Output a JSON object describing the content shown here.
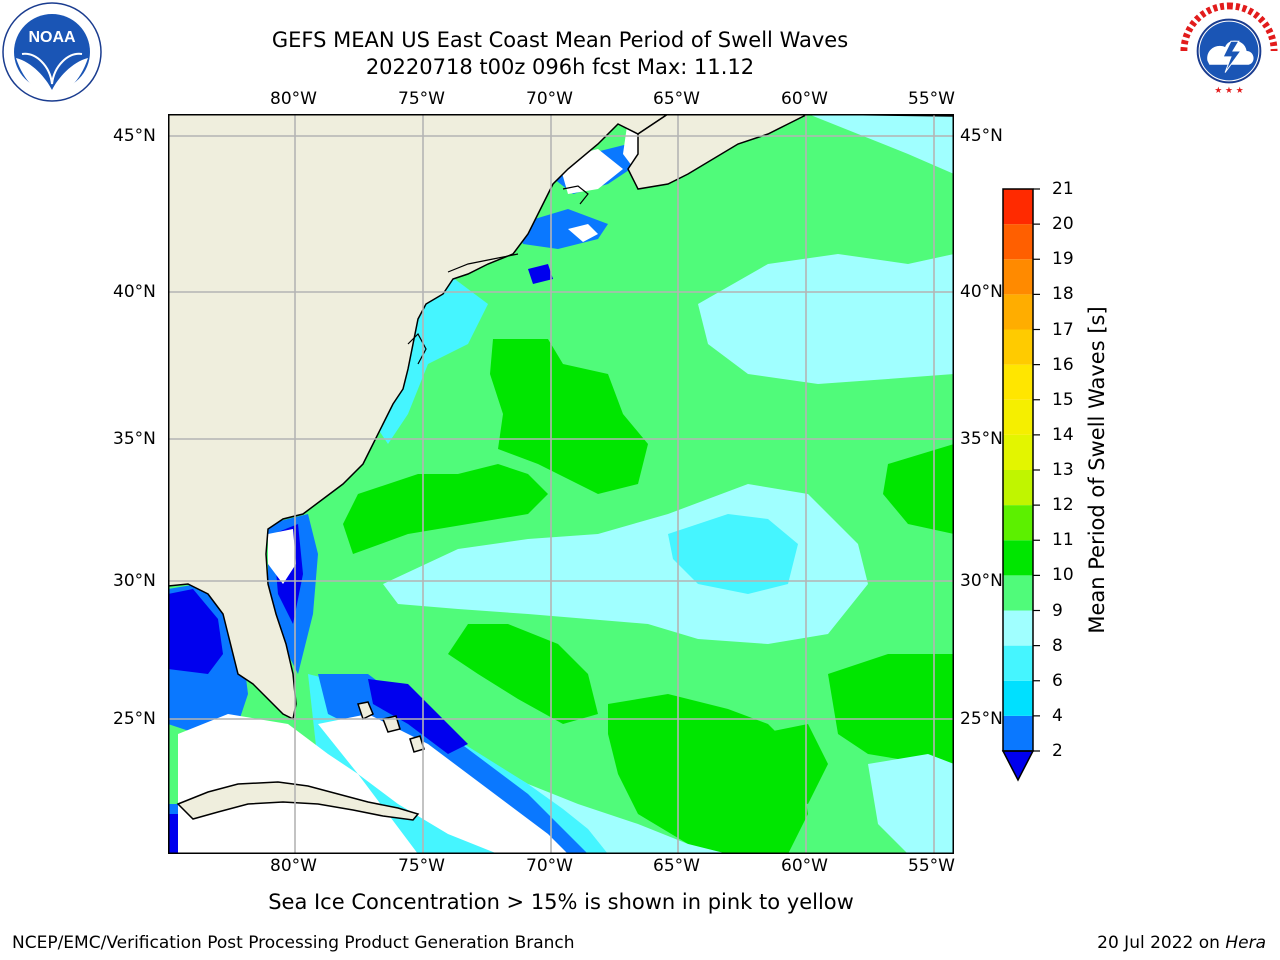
{
  "header": {
    "title_line1": "GEFS MEAN US East Coast Mean Period of Swell Waves",
    "title_line2": "20220718 t00z 096h fcst   Max: 11.12"
  },
  "map": {
    "region": "US East Coast / Western North Atlantic",
    "lon_labels": [
      "80°W",
      "75°W",
      "70°W",
      "65°W",
      "60°W",
      "55°W"
    ],
    "lat_labels": [
      "45°N",
      "40°N",
      "35°N",
      "30°N",
      "25°N"
    ],
    "lon_range": [
      "85°W",
      "54.5°W"
    ],
    "lat_range": [
      "20.5°N",
      "46°N"
    ],
    "grid": true,
    "land_color": "#efeedd",
    "grid_color": "#b4b4b4"
  },
  "colorbar": {
    "label": "Mean Period of Swell Waves [s]",
    "levels": [
      "2",
      "4",
      "6",
      "8",
      "9",
      "10",
      "11",
      "12",
      "13",
      "14",
      "15",
      "16",
      "17",
      "18",
      "19",
      "20",
      "21"
    ],
    "colors": [
      "#0a78ff",
      "#00e0ff",
      "#45f5ff",
      "#a0ffff",
      "#50fb7a",
      "#00e600",
      "#5cf000",
      "#c0f500",
      "#e3f500",
      "#f5ef00",
      "#ffe600",
      "#ffcb00",
      "#ffad00",
      "#ff8a00",
      "#ff5f00",
      "#ff2a00"
    ],
    "extend_under_color": "#0000ee"
  },
  "footnote": "Sea Ice Concentration > 15% is shown in pink to yellow",
  "credit_left": "NCEP/EMC/Verification Post Processing Product Generation Branch",
  "credit_right_prefix": "20 Jul 2022 on ",
  "credit_right_host": "Hera",
  "logos": {
    "left": "noaa-logo",
    "right": "nws-logo",
    "left_text": "NOAA",
    "left_ring_text": "NATIONAL OCEANIC AND ATMOSPHERIC ADMINISTRATION · U.S. DEPARTMENT OF COMMERCE",
    "right_ring_text": "NATIONAL WEATHER SERVICE"
  }
}
